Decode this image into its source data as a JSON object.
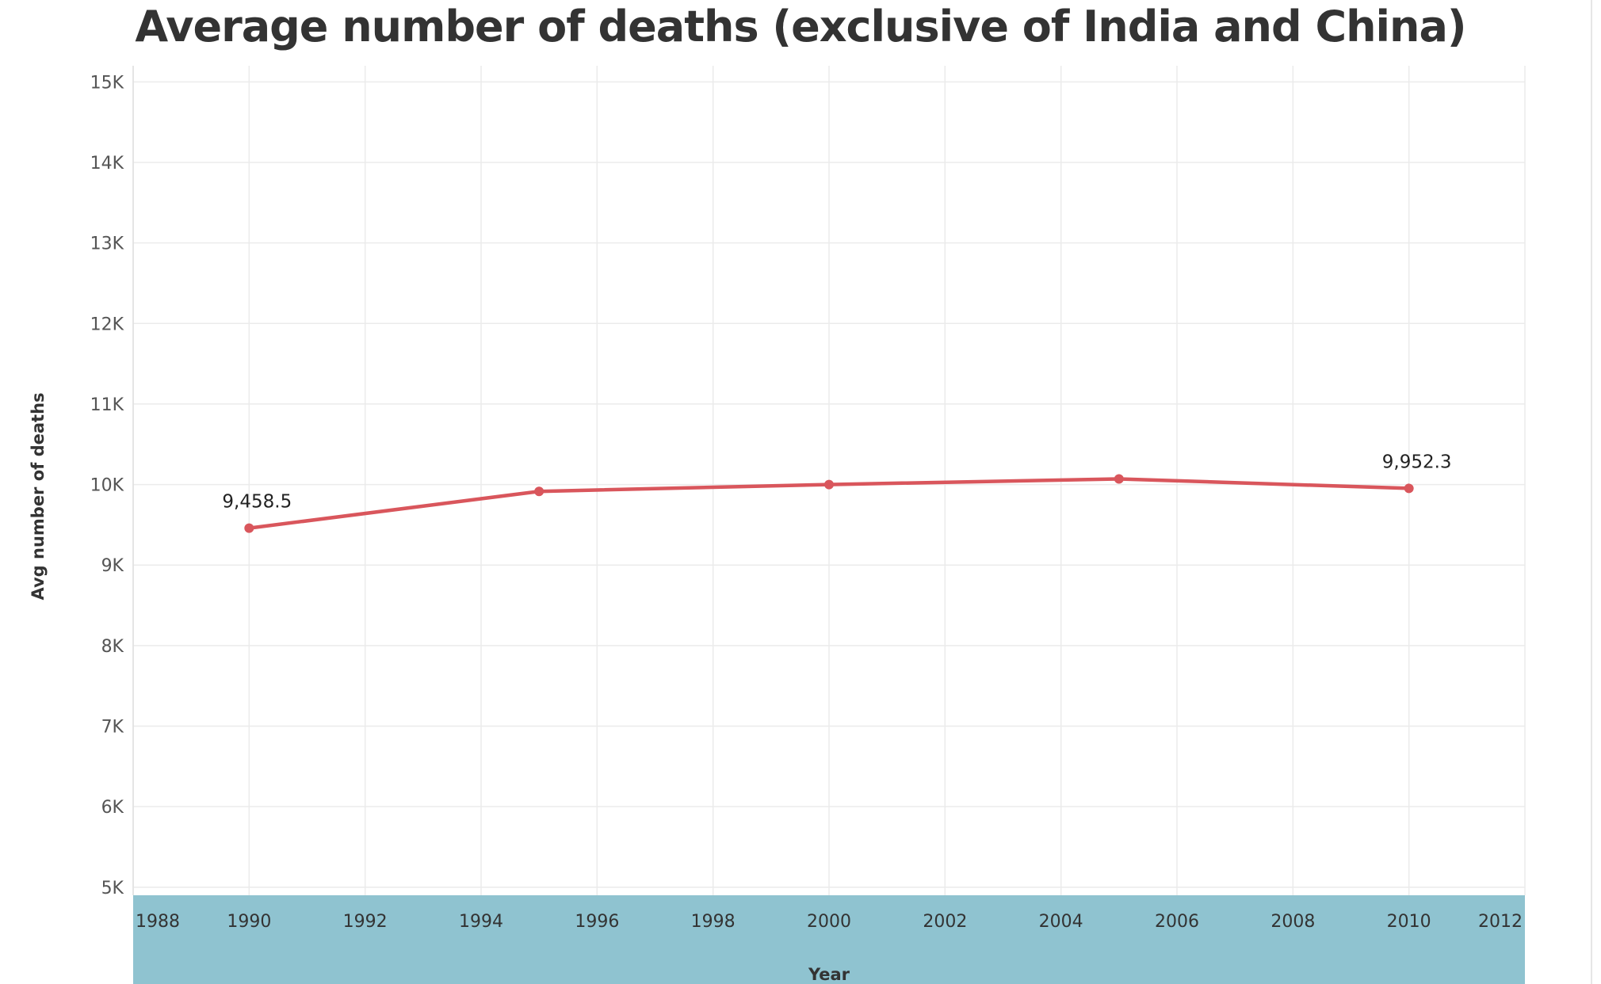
{
  "chart_data": {
    "type": "line",
    "title": "Average number of deaths (exclusive of India and China)",
    "xlabel": "Year",
    "ylabel": "Avg number of deaths",
    "xlim": [
      1988,
      2012
    ],
    "ylim": [
      4900,
      15200
    ],
    "x_ticks": [
      1988,
      1990,
      1992,
      1994,
      1996,
      1998,
      2000,
      2002,
      2004,
      2006,
      2008,
      2010,
      2012
    ],
    "y_ticks": [
      {
        "value": 5000,
        "label": "5K"
      },
      {
        "value": 6000,
        "label": "6K"
      },
      {
        "value": 7000,
        "label": "7K"
      },
      {
        "value": 8000,
        "label": "8K"
      },
      {
        "value": 9000,
        "label": "9K"
      },
      {
        "value": 10000,
        "label": "10K"
      },
      {
        "value": 11000,
        "label": "11K"
      },
      {
        "value": 12000,
        "label": "12K"
      },
      {
        "value": 13000,
        "label": "13K"
      },
      {
        "value": 14000,
        "label": "14K"
      },
      {
        "value": 15000,
        "label": "15K"
      }
    ],
    "grid": true,
    "series": [
      {
        "color": "#d9565c",
        "points": [
          {
            "x": 1990,
            "y": 9458.5,
            "label": "9,458.5"
          },
          {
            "x": 1995,
            "y": 9915,
            "label": ""
          },
          {
            "x": 2000,
            "y": 10000,
            "label": ""
          },
          {
            "x": 2005,
            "y": 10070,
            "label": ""
          },
          {
            "x": 2010,
            "y": 9952.3,
            "label": "9,952.3"
          }
        ]
      }
    ],
    "x_axis_band_color": "#8fc3d0"
  }
}
